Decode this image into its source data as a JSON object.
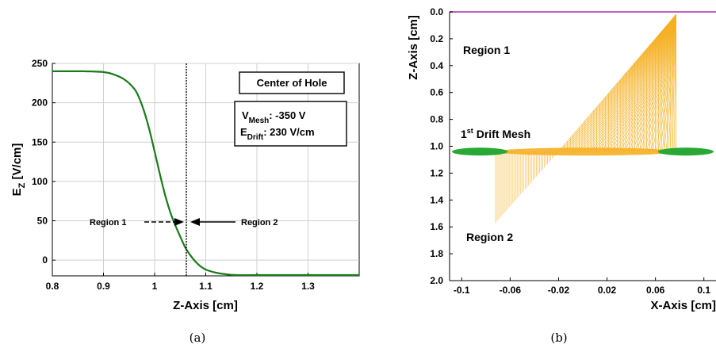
{
  "captions": {
    "a": "(a)",
    "b": "(b)"
  },
  "chart_data": [
    {
      "type": "line",
      "xlabel": "Z-Axis [cm]",
      "ylabel_main": "E",
      "ylabel_sub": "Z",
      "ylabel_rest": " [V/cm]",
      "xlim": [
        0.8,
        1.4
      ],
      "ylim": [
        -20,
        250
      ],
      "xticks": [
        0.8,
        0.9,
        1,
        1.1,
        1.2,
        1.3
      ],
      "xtick_labels": [
        "0.8",
        "0.9",
        "1",
        "1.1",
        "1.2",
        "1.3"
      ],
      "yticks": [
        0,
        50,
        100,
        150,
        200,
        250
      ],
      "ytick_labels": [
        "0",
        "50",
        "100",
        "150",
        "200",
        "250"
      ],
      "grid": true,
      "line_color": "#1a7a1a",
      "x": [
        0.8,
        0.86,
        0.9,
        0.92,
        0.94,
        0.96,
        0.97,
        0.98,
        0.99,
        1.0,
        1.01,
        1.02,
        1.03,
        1.04,
        1.05,
        1.06,
        1.07,
        1.08,
        1.09,
        1.1,
        1.12,
        1.14,
        1.16,
        1.2,
        1.3,
        1.4
      ],
      "y": [
        240,
        240,
        239,
        236,
        230,
        218,
        206,
        188,
        165,
        138,
        110,
        84,
        62,
        45,
        30,
        16,
        6,
        -2,
        -8,
        -12,
        -16,
        -18,
        -19,
        -19,
        -19,
        -19
      ],
      "vline_x": 1.062,
      "annotations": {
        "region1": "Region 1",
        "region2": "Region 2",
        "box_title": "Center of Hole",
        "v_label": "V",
        "v_sub": "Mesh",
        "v_value": ": -350 V",
        "e_label": "E",
        "e_sub": "Drift",
        "e_value": ": 230 V/cm"
      }
    },
    {
      "type": "diagram",
      "xlabel": "X-Axis [cm]",
      "ylabel": "Z-Axis [cm]",
      "xlim": [
        -0.11,
        0.11
      ],
      "ylim": [
        2.0,
        0.0
      ],
      "xticks": [
        -0.1,
        -0.06,
        -0.02,
        0.02,
        0.06,
        0.1
      ],
      "xtick_labels": [
        "-0.1",
        "-0.06",
        "-0.02",
        "0.02",
        "0.06",
        "0.1"
      ],
      "yticks": [
        0.0,
        0.2,
        0.4,
        0.6,
        0.8,
        1.0,
        1.2,
        1.4,
        1.6,
        1.8,
        2.0
      ],
      "ytick_labels": [
        "0.0",
        "0.2",
        "0.4",
        "0.6",
        "0.8",
        "1.0",
        "1.2",
        "1.4",
        "1.6",
        "1.8",
        "2.0"
      ],
      "grid": false,
      "mesh_color": "#2aa836",
      "field_color": "#f5b022",
      "top_line_color": "#c060c0",
      "labels": {
        "region1": "Region 1",
        "region2": "Region 2",
        "mesh_pre": "1",
        "mesh_sup": "st",
        "mesh_post": " Drift Mesh"
      },
      "mesh_z": 1.04,
      "mesh_left_x": [
        -0.108,
        -0.062
      ],
      "mesh_right_x": [
        0.062,
        0.108
      ],
      "fan_upper_top": {
        "x": 0.077,
        "z": 0.02
      },
      "fan_upper_base_x": [
        -0.02,
        0.077
      ],
      "fan_lower_bottom": {
        "x": -0.072,
        "z": 1.57
      },
      "fan_lower_base_x": [
        -0.072,
        -0.02
      ]
    }
  ]
}
